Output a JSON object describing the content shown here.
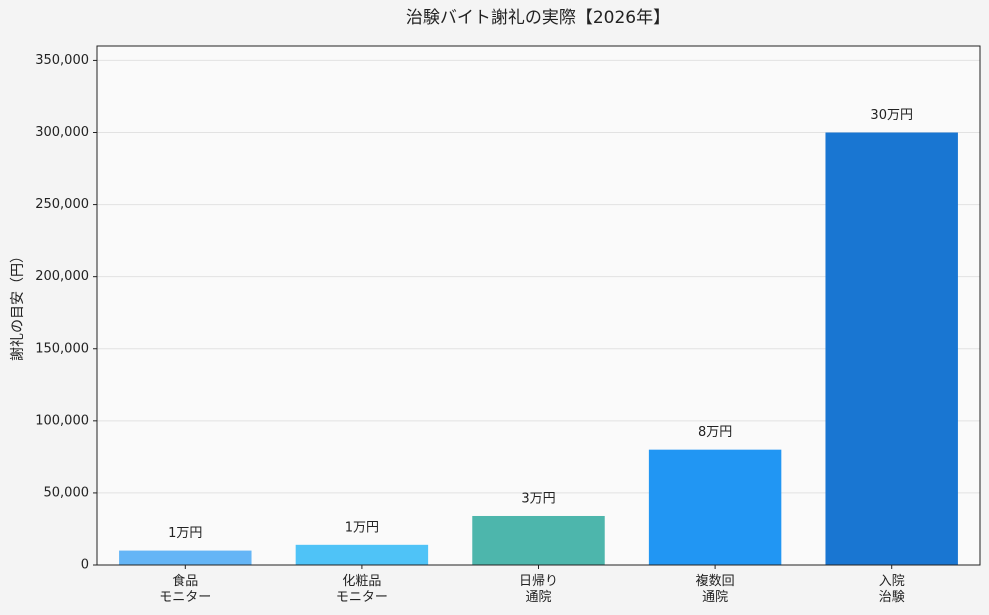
{
  "chart_data": {
    "type": "bar",
    "title": "治験バイト謝礼の実際【2026年】",
    "y_label": "謝礼の目安（円）",
    "categories": [
      "食品\nモニター",
      "化粧品\nモニター",
      "日帰り\n通院",
      "複数回\n通院",
      "入院\n治験"
    ],
    "values": [
      10000,
      14000,
      34000,
      80000,
      300000
    ],
    "value_labels": [
      "1万円",
      "1万円",
      "3万円",
      "8万円",
      "30万円"
    ],
    "colors": [
      "#64b5f6",
      "#4fc3f7",
      "#4db6ac",
      "#2196f3",
      "#1976d2"
    ],
    "ylim": [
      0,
      360000
    ],
    "yticks": [
      0,
      {
        "value": 50000,
        "label": "50,000"
      },
      {
        "value": 100000,
        "label": "100,000"
      },
      {
        "value": 150000,
        "label": "150,000"
      },
      {
        "value": 200000,
        "label": "200,000"
      },
      {
        "value": 250000,
        "label": "250,000"
      },
      {
        "value": 300000,
        "label": "300,000"
      },
      {
        "value": 350000,
        "label": "350,000"
      }
    ],
    "grid": true
  }
}
